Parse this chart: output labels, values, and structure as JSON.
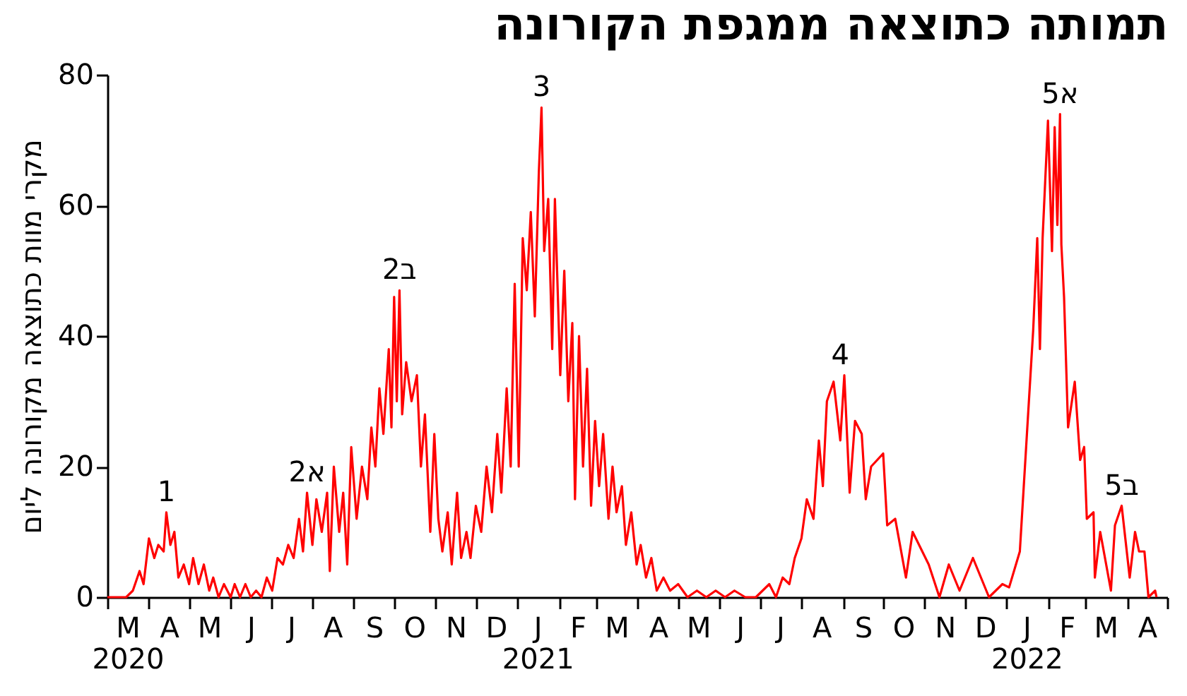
{
  "chart_data": {
    "type": "line",
    "title": "תמותה כתוצאה ממגפת הקורונה",
    "ylabel": "מקרי מוות כתוצאה מקורונה ליום",
    "x": [
      "2020-03-01",
      "2020-03-15",
      "2020-03-20",
      "2020-03-25",
      "2020-03-28",
      "2020-04-01",
      "2020-04-05",
      "2020-04-08",
      "2020-04-12",
      "2020-04-14",
      "2020-04-17",
      "2020-04-20",
      "2020-04-23",
      "2020-04-27",
      "2020-05-01",
      "2020-05-04",
      "2020-05-08",
      "2020-05-12",
      "2020-05-16",
      "2020-05-19",
      "2020-05-23",
      "2020-05-27",
      "2020-06-01",
      "2020-06-04",
      "2020-06-08",
      "2020-06-12",
      "2020-06-16",
      "2020-06-20",
      "2020-06-24",
      "2020-06-28",
      "2020-07-02",
      "2020-07-06",
      "2020-07-10",
      "2020-07-14",
      "2020-07-18",
      "2020-07-22",
      "2020-07-25",
      "2020-07-28",
      "2020-08-01",
      "2020-08-04",
      "2020-08-08",
      "2020-08-12",
      "2020-08-14",
      "2020-08-17",
      "2020-08-21",
      "2020-08-24",
      "2020-08-27",
      "2020-08-30",
      "2020-09-03",
      "2020-09-07",
      "2020-09-11",
      "2020-09-14",
      "2020-09-17",
      "2020-09-20",
      "2020-09-23",
      "2020-09-27",
      "2020-09-29",
      "2020-10-01",
      "2020-10-03",
      "2020-10-05",
      "2020-10-07",
      "2020-10-10",
      "2020-10-14",
      "2020-10-18",
      "2020-10-21",
      "2020-10-24",
      "2020-10-28",
      "2020-10-31",
      "2020-11-03",
      "2020-11-06",
      "2020-11-10",
      "2020-11-13",
      "2020-11-17",
      "2020-11-20",
      "2020-11-24",
      "2020-11-27",
      "2020-12-01",
      "2020-12-05",
      "2020-12-09",
      "2020-12-13",
      "2020-12-17",
      "2020-12-20",
      "2020-12-24",
      "2020-12-27",
      "2020-12-30",
      "2021-01-02",
      "2021-01-05",
      "2021-01-08",
      "2021-01-11",
      "2021-01-14",
      "2021-01-17",
      "2021-01-19",
      "2021-01-21",
      "2021-01-24",
      "2021-01-27",
      "2021-01-29",
      "2021-02-02",
      "2021-02-05",
      "2021-02-08",
      "2021-02-11",
      "2021-02-13",
      "2021-02-16",
      "2021-02-19",
      "2021-02-22",
      "2021-02-25",
      "2021-02-28",
      "2021-03-03",
      "2021-03-06",
      "2021-03-10",
      "2021-03-13",
      "2021-03-16",
      "2021-03-20",
      "2021-03-23",
      "2021-03-27",
      "2021-03-31",
      "2021-04-03",
      "2021-04-07",
      "2021-04-11",
      "2021-04-15",
      "2021-04-20",
      "2021-04-25",
      "2021-05-01",
      "2021-05-08",
      "2021-05-15",
      "2021-05-22",
      "2021-05-29",
      "2021-06-05",
      "2021-06-12",
      "2021-06-20",
      "2021-06-28",
      "2021-07-03",
      "2021-07-08",
      "2021-07-13",
      "2021-07-18",
      "2021-07-23",
      "2021-07-27",
      "2021-08-01",
      "2021-08-05",
      "2021-08-10",
      "2021-08-14",
      "2021-08-17",
      "2021-08-20",
      "2021-08-25",
      "2021-08-30",
      "2021-09-02",
      "2021-09-06",
      "2021-09-10",
      "2021-09-15",
      "2021-09-18",
      "2021-09-22",
      "2021-10-01",
      "2021-10-04",
      "2021-10-10",
      "2021-10-18",
      "2021-10-23",
      "2021-11-04",
      "2021-11-12",
      "2021-11-19",
      "2021-11-27",
      "2021-12-07",
      "2021-12-19",
      "2021-12-29",
      "2022-01-03",
      "2022-01-11",
      "2022-01-16",
      "2022-01-21",
      "2022-01-24",
      "2022-01-26",
      "2022-01-28",
      "2022-02-01",
      "2022-02-04",
      "2022-02-06",
      "2022-02-08",
      "2022-02-10",
      "2022-02-11",
      "2022-02-13",
      "2022-02-16",
      "2022-02-21",
      "2022-02-25",
      "2022-02-28",
      "2022-03-02",
      "2022-03-07",
      "2022-03-08",
      "2022-03-12",
      "2022-03-20",
      "2022-03-23",
      "2022-03-28",
      "2022-04-03",
      "2022-04-07",
      "2022-04-10",
      "2022-04-14",
      "2022-04-17",
      "2022-04-22",
      "2022-04-23"
    ],
    "series": [
      {
        "color": "#ff0000",
        "values": [
          0,
          0,
          1,
          4,
          2,
          9,
          6,
          8,
          7,
          13,
          8,
          10,
          3,
          5,
          2,
          6,
          2,
          5,
          1,
          3,
          0,
          2,
          0,
          2,
          0,
          2,
          0,
          1,
          0,
          3,
          1,
          6,
          5,
          8,
          6,
          12,
          7,
          16,
          8,
          15,
          10,
          16,
          4,
          20,
          10,
          16,
          5,
          23,
          12,
          20,
          15,
          26,
          20,
          32,
          25,
          38,
          26,
          46,
          30,
          47,
          28,
          36,
          30,
          34,
          20,
          28,
          10,
          25,
          12,
          7,
          13,
          5,
          16,
          6,
          10,
          6,
          14,
          10,
          20,
          13,
          25,
          16,
          32,
          20,
          48,
          20,
          55,
          47,
          59,
          43,
          65,
          75,
          53,
          61,
          38,
          61,
          34,
          50,
          30,
          42,
          15,
          40,
          20,
          35,
          14,
          27,
          17,
          25,
          12,
          20,
          13,
          17,
          8,
          13,
          5,
          8,
          3,
          6,
          1,
          3,
          1,
          2,
          0,
          1,
          0,
          1,
          0,
          1,
          0,
          0,
          1,
          2,
          0,
          3,
          2,
          6,
          9,
          15,
          12,
          24,
          17,
          30,
          33,
          24,
          34,
          16,
          27,
          25,
          15,
          20,
          22,
          11,
          12,
          3,
          10,
          5,
          0,
          5,
          1,
          6,
          0,
          2,
          1.5,
          7,
          24,
          41,
          55,
          38,
          55,
          73,
          53,
          72,
          57,
          74,
          54,
          46,
          26,
          33,
          21,
          23,
          12,
          13,
          3,
          10,
          1,
          11,
          14,
          3,
          10,
          7,
          7,
          0,
          1,
          0
        ]
      }
    ],
    "xlim": [
      "2020-03-01",
      "2022-05-01"
    ],
    "xticks": [
      {
        "value": "2020-03-01",
        "label": null
      },
      {
        "value": "2020-03-16",
        "label": "M\n2020"
      },
      {
        "value": "2020-04-01",
        "label": null
      },
      {
        "value": "2020-04-16",
        "label": "A"
      },
      {
        "value": "2020-05-01",
        "label": null
      },
      {
        "value": "2020-05-16",
        "label": "M"
      },
      {
        "value": "2020-06-01",
        "label": null
      },
      {
        "value": "2020-06-16",
        "label": "J"
      },
      {
        "value": "2020-07-01",
        "label": null
      },
      {
        "value": "2020-07-16",
        "label": "J"
      },
      {
        "value": "2020-08-01",
        "label": null
      },
      {
        "value": "2020-08-16",
        "label": "A"
      },
      {
        "value": "2020-09-01",
        "label": null
      },
      {
        "value": "2020-09-16",
        "label": "S"
      },
      {
        "value": "2020-10-01",
        "label": null
      },
      {
        "value": "2020-10-16",
        "label": "O"
      },
      {
        "value": "2020-11-01",
        "label": null
      },
      {
        "value": "2020-11-16",
        "label": "N"
      },
      {
        "value": "2020-12-01",
        "label": null
      },
      {
        "value": "2020-12-16",
        "label": "D"
      },
      {
        "value": "2021-01-01",
        "label": null
      },
      {
        "value": "2021-01-16",
        "label": "J\n2021"
      },
      {
        "value": "2021-02-01",
        "label": null
      },
      {
        "value": "2021-02-15",
        "label": "F"
      },
      {
        "value": "2021-03-01",
        "label": null
      },
      {
        "value": "2021-03-16",
        "label": "M"
      },
      {
        "value": "2021-04-01",
        "label": null
      },
      {
        "value": "2021-04-16",
        "label": "A"
      },
      {
        "value": "2021-05-01",
        "label": null
      },
      {
        "value": "2021-05-16",
        "label": "M"
      },
      {
        "value": "2021-06-01",
        "label": null
      },
      {
        "value": "2021-06-16",
        "label": "J"
      },
      {
        "value": "2021-07-01",
        "label": null
      },
      {
        "value": "2021-07-16",
        "label": "J"
      },
      {
        "value": "2021-08-01",
        "label": null
      },
      {
        "value": "2021-08-16",
        "label": "A"
      },
      {
        "value": "2021-09-01",
        "label": null
      },
      {
        "value": "2021-09-16",
        "label": "S"
      },
      {
        "value": "2021-10-01",
        "label": null
      },
      {
        "value": "2021-10-16",
        "label": "O"
      },
      {
        "value": "2021-11-01",
        "label": null
      },
      {
        "value": "2021-11-16",
        "label": "N"
      },
      {
        "value": "2021-12-01",
        "label": null
      },
      {
        "value": "2021-12-16",
        "label": "D"
      },
      {
        "value": "2022-01-01",
        "label": null
      },
      {
        "value": "2022-01-16",
        "label": "J\n2022"
      },
      {
        "value": "2022-02-01",
        "label": null
      },
      {
        "value": "2022-02-15",
        "label": "F"
      },
      {
        "value": "2022-03-01",
        "label": null
      },
      {
        "value": "2022-03-16",
        "label": "M"
      },
      {
        "value": "2022-04-01",
        "label": null
      },
      {
        "value": "2022-04-16",
        "label": "A"
      },
      {
        "value": "2022-05-01",
        "label": null
      }
    ],
    "ylim": [
      0,
      80
    ],
    "yticks": [
      0,
      20,
      40,
      60,
      80
    ],
    "marker": "none",
    "line_style": "solid",
    "annotations": [
      {
        "text": "1",
        "x": "2020-04-14",
        "y": 13
      },
      {
        "text": "2א",
        "x": "2020-07-28",
        "y": 16
      },
      {
        "text": "2ב",
        "x": "2020-10-05",
        "y": 47
      },
      {
        "text": "3",
        "x": "2021-01-19",
        "y": 75
      },
      {
        "text": "4",
        "x": "2021-08-30",
        "y": 34
      },
      {
        "text": "5א",
        "x": "2022-02-10",
        "y": 74
      },
      {
        "text": "5ב",
        "x": "2022-03-28",
        "y": 14
      }
    ]
  }
}
